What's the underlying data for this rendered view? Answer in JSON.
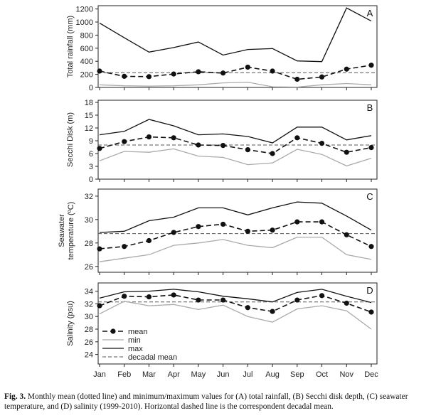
{
  "chart_data": [
    {
      "type": "line",
      "panel_label": "A",
      "ylabel": "Total rainfall (mm)",
      "ylim": [
        0,
        1250
      ],
      "yticks": [
        0,
        200,
        400,
        600,
        800,
        1000,
        1200
      ],
      "categories": [
        "Jan",
        "Feb",
        "Mar",
        "Apr",
        "May",
        "Jun",
        "Jul",
        "Aug",
        "Sep",
        "Oct",
        "Nov",
        "Dec"
      ],
      "series": [
        {
          "name": "mean",
          "values": [
            250,
            170,
            165,
            205,
            240,
            220,
            310,
            250,
            125,
            160,
            280,
            340
          ]
        },
        {
          "name": "min",
          "values": [
            40,
            25,
            20,
            25,
            40,
            70,
            80,
            10,
            5,
            40,
            60,
            40
          ]
        },
        {
          "name": "max",
          "values": [
            985,
            760,
            540,
            610,
            695,
            495,
            580,
            595,
            405,
            395,
            1215,
            1015
          ]
        }
      ],
      "decadal_mean": 225
    },
    {
      "type": "line",
      "panel_label": "B",
      "ylabel": "Secchi Disk (m)",
      "ylim": [
        0,
        18.5
      ],
      "yticks": [
        0,
        3,
        6,
        9,
        12,
        15,
        18
      ],
      "categories": [
        "Jan",
        "Feb",
        "Mar",
        "Apr",
        "May",
        "Jun",
        "Jul",
        "Aug",
        "Sep",
        "Oct",
        "Nov",
        "Dec"
      ],
      "series": [
        {
          "name": "mean",
          "values": [
            7.2,
            8.8,
            9.9,
            9.7,
            8.0,
            7.9,
            6.9,
            6.0,
            9.7,
            8.4,
            6.3,
            7.4
          ]
        },
        {
          "name": "min",
          "values": [
            4.3,
            6.5,
            6.3,
            7.1,
            5.4,
            5.1,
            3.4,
            3.8,
            7.0,
            5.8,
            3.1,
            4.9
          ]
        },
        {
          "name": "max",
          "values": [
            10.4,
            11.2,
            14.0,
            12.5,
            10.4,
            10.6,
            10.0,
            8.5,
            12.2,
            12.2,
            9.2,
            10.2
          ]
        }
      ],
      "decadal_mean": 8.0
    },
    {
      "type": "line",
      "panel_label": "C",
      "ylabel": "Seawater temperature (ºC)",
      "ylim": [
        25.5,
        32.6
      ],
      "yticks": [
        26,
        28,
        30,
        32
      ],
      "categories": [
        "Jan",
        "Feb",
        "Mar",
        "Apr",
        "May",
        "Jun",
        "Jul",
        "Aug",
        "Sep",
        "Oct",
        "Nov",
        "Dec"
      ],
      "series": [
        {
          "name": "mean",
          "values": [
            27.5,
            27.7,
            28.2,
            28.9,
            29.4,
            29.6,
            29.0,
            29.1,
            29.8,
            29.8,
            28.7,
            27.7
          ]
        },
        {
          "name": "min",
          "values": [
            26.4,
            26.7,
            27.0,
            27.8,
            28.0,
            28.3,
            27.8,
            27.6,
            28.5,
            28.5,
            27.0,
            26.6
          ]
        },
        {
          "name": "max",
          "values": [
            28.9,
            29.0,
            29.9,
            30.2,
            31.0,
            31.0,
            30.4,
            31.0,
            31.5,
            31.4,
            30.3,
            29.1
          ]
        }
      ],
      "decadal_mean": 28.8
    },
    {
      "type": "line",
      "panel_label": "D",
      "ylabel": "Salinity (psu)",
      "ylim": [
        22.5,
        35.3
      ],
      "yticks": [
        24,
        26,
        28,
        30,
        32,
        34
      ],
      "categories": [
        "Jan",
        "Feb",
        "Mar",
        "Apr",
        "May",
        "Jun",
        "Jul",
        "Aug",
        "Sep",
        "Oct",
        "Nov",
        "Dec"
      ],
      "series": [
        {
          "name": "mean",
          "values": [
            31.7,
            33.2,
            33.1,
            33.4,
            32.6,
            32.6,
            31.4,
            30.8,
            32.6,
            33.3,
            32.1,
            30.7
          ]
        },
        {
          "name": "min",
          "values": [
            30.4,
            32.4,
            31.7,
            31.9,
            31.1,
            31.8,
            30.0,
            29.1,
            31.2,
            31.7,
            30.9,
            28.0
          ]
        },
        {
          "name": "max",
          "values": [
            32.9,
            33.9,
            34.0,
            34.3,
            33.9,
            33.2,
            32.8,
            32.3,
            33.8,
            34.3,
            33.2,
            32.2
          ]
        }
      ],
      "decadal_mean": 32.3
    }
  ],
  "x_tick_labels": [
    "Jan",
    "Feb",
    "Mar",
    "Apr",
    "May",
    "Jun",
    "Jul",
    "Aug",
    "Sep",
    "Oct",
    "Nov",
    "Dec"
  ],
  "legend": {
    "placement": "bottom-left of panel D",
    "items": [
      "mean",
      "min",
      "max",
      "decadal mean"
    ]
  },
  "styles": {
    "mean_color": "#111111",
    "min_color": "#aaaaaa",
    "max_color": "#111111",
    "decadal_color": "#555555"
  },
  "caption": {
    "label": "Fig. 3.",
    "text": " Monthly mean (dotted line) and minimum/maximum values for (A) total rainfall, (B) Secchi disk depth, (C) seawater temperature, and (D) salinity (1999-2010). Horizontal dashed line is the correspondent decadal mean."
  }
}
